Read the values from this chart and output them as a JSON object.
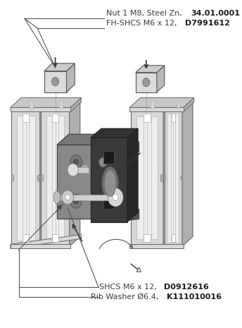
{
  "background_color": "#ffffff",
  "text_color": "#3a3a3a",
  "bold_color": "#1a1a1a",
  "line_color": "#555555",
  "font_size": 8.0,
  "labels": {
    "top1_normal": "Nut 1 M8, Steel Zn, ",
    "top1_bold": "34.01.0001",
    "top2_normal": "FH-SHCS M6 x 12, ",
    "top2_bold": "D7991612",
    "bot1_normal": "SHCS M6 x 12, ",
    "bot1_bold": "D0912616",
    "bot2_normal": "Rib Washer Ø6.4, ",
    "bot2_bold": "K111010016"
  },
  "extrusion_face": "#d8d8d8",
  "extrusion_side": "#b0b0b0",
  "extrusion_top": "#c8c8c8",
  "extrusion_inner": "#e8e8e8",
  "latch_face": "#888888",
  "latch_side": "#666666",
  "latch_top": "#777777",
  "strike_face": "#3a3a3a",
  "strike_side": "#282828",
  "strike_top": "#323232",
  "nut_face": "#dcdcdc",
  "nut_side": "#b8b8b8",
  "nut_top": "#cccccc"
}
